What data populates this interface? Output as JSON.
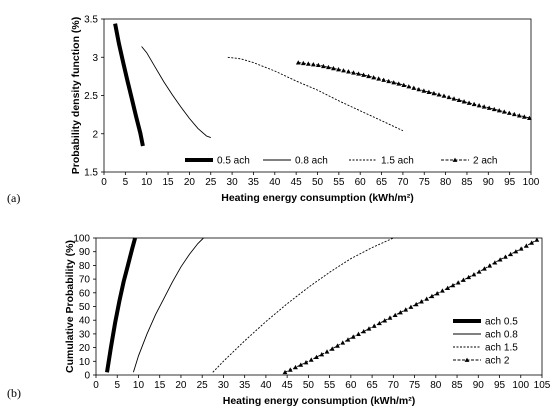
{
  "chart_data": [
    {
      "type": "line",
      "panel_label": "(a)",
      "xlabel": "Heating energy consumption  (kWh/m²)",
      "ylabel": "Probability density function (%)",
      "xlim": [
        0,
        100
      ],
      "ylim": [
        1.5,
        3.5
      ],
      "xticks": [
        0,
        5,
        10,
        15,
        20,
        25,
        30,
        35,
        40,
        45,
        50,
        55,
        60,
        65,
        70,
        75,
        80,
        85,
        90,
        95,
        100
      ],
      "yticks": [
        1.5,
        2,
        2.5,
        3,
        3.5
      ],
      "grid": false,
      "legend_position": "bottom-inside",
      "series": [
        {
          "name": "0.5 ach",
          "style": "thick",
          "x": [
            2.6,
            3.5,
            4.5,
            5.5,
            6.5,
            7.5,
            8.5,
            9.1
          ],
          "y": [
            3.44,
            3.18,
            2.93,
            2.69,
            2.46,
            2.23,
            2.01,
            1.84
          ]
        },
        {
          "name": "0.8 ach",
          "style": "thin",
          "x": [
            8.8,
            10,
            12,
            14,
            16,
            18,
            20,
            22,
            24,
            25
          ],
          "y": [
            3.14,
            3.06,
            2.87,
            2.68,
            2.51,
            2.35,
            2.2,
            2.07,
            1.97,
            1.95
          ]
        },
        {
          "name": "1.5 ach",
          "style": "dashed",
          "x": [
            29,
            32,
            35,
            40,
            45,
            50,
            55,
            60,
            65,
            70
          ],
          "y": [
            3.0,
            2.98,
            2.93,
            2.82,
            2.69,
            2.57,
            2.43,
            2.3,
            2.17,
            2.04
          ]
        },
        {
          "name": "2 ach",
          "style": "triangle",
          "x": [
            45.5,
            50,
            55,
            60,
            65,
            70,
            75,
            80,
            85,
            90,
            95,
            100
          ],
          "y": [
            2.93,
            2.9,
            2.84,
            2.78,
            2.71,
            2.64,
            2.56,
            2.49,
            2.41,
            2.34,
            2.27,
            2.2
          ]
        }
      ]
    },
    {
      "type": "line",
      "panel_label": "(b)",
      "xlabel": "Heating energy consumption  (kWh/m²)",
      "ylabel": "Cumulative Probability (%)",
      "xlim": [
        0,
        105
      ],
      "ylim": [
        0,
        100
      ],
      "xticks": [
        0,
        5,
        10,
        15,
        20,
        25,
        30,
        35,
        40,
        45,
        50,
        55,
        60,
        65,
        70,
        75,
        80,
        85,
        90,
        95,
        100,
        105
      ],
      "yticks": [
        0,
        10,
        20,
        30,
        40,
        50,
        60,
        70,
        80,
        90,
        100
      ],
      "grid": false,
      "legend_position": "right-inside",
      "series": [
        {
          "name": "ach 0.5",
          "style": "thick",
          "x": [
            2.6,
            3.5,
            4.5,
            5.5,
            6.5,
            7.5,
            8.5,
            9.2
          ],
          "y": [
            2,
            20,
            38,
            54,
            68,
            80,
            92,
            100
          ]
        },
        {
          "name": "ach 0.8",
          "style": "thin",
          "x": [
            8.8,
            10,
            12,
            14,
            16,
            18,
            20,
            22,
            24,
            25.3
          ],
          "y": [
            2,
            14,
            30,
            44,
            56,
            68,
            79,
            88,
            96,
            100
          ]
        },
        {
          "name": "ach 1.5",
          "style": "dashed",
          "x": [
            27.5,
            30,
            35,
            40,
            45,
            50,
            55,
            60,
            65,
            70
          ],
          "y": [
            2,
            10,
            25,
            39,
            52,
            64,
            75,
            85,
            93,
            100
          ]
        },
        {
          "name": "ach 2",
          "style": "triangle",
          "x": [
            44.5,
            50,
            55,
            60,
            65,
            70,
            75,
            80,
            85,
            90,
            95,
            100,
            104
          ],
          "y": [
            2,
            10,
            18,
            27,
            35,
            43,
            51,
            59,
            67,
            75,
            84,
            92,
            99
          ]
        }
      ]
    }
  ]
}
